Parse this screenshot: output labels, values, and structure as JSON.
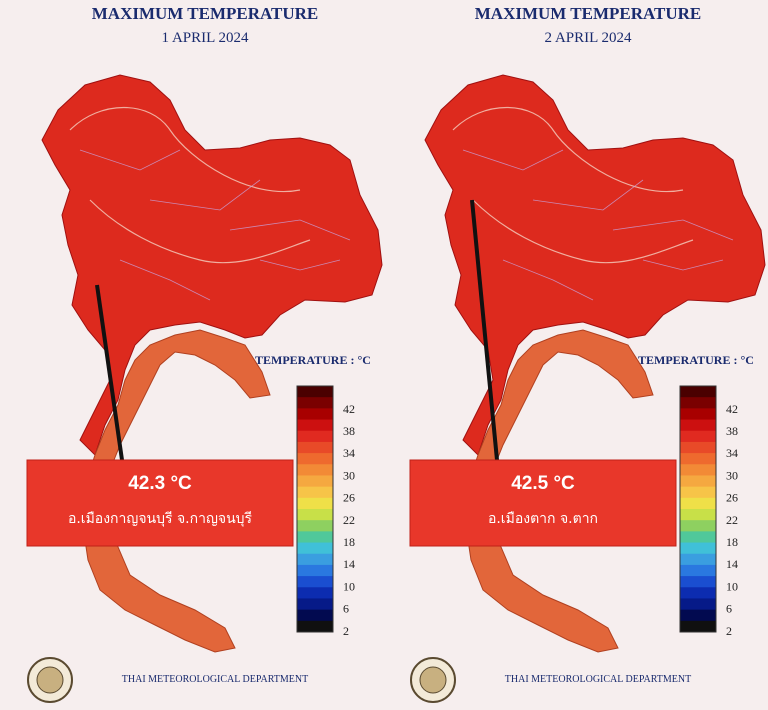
{
  "panels": [
    {
      "title": "MAXIMUM TEMPERATURE",
      "date": "1 APRIL 2024",
      "legend_title": "TEMPERATURE : °C",
      "legend_ticks": [
        42,
        38,
        34,
        30,
        26,
        22,
        18,
        14,
        10,
        6,
        2
      ],
      "max_value": "42.3 °C",
      "location": "อ.เมืองกาญจนบุรี จ.กาญจนบุรี",
      "footer": "THAI METEOROLOGICAL DEPARTMENT"
    },
    {
      "title": "MAXIMUM TEMPERATURE",
      "date": "2 APRIL 2024",
      "legend_title": "TEMPERATURE : °C",
      "legend_ticks": [
        42,
        38,
        34,
        30,
        26,
        22,
        18,
        14,
        10,
        6,
        2
      ],
      "max_value": "42.5 °C",
      "location": "อ.เมืองตาก จ.ตาก",
      "footer": "THAI METEOROLOGICAL DEPARTMENT"
    }
  ]
}
